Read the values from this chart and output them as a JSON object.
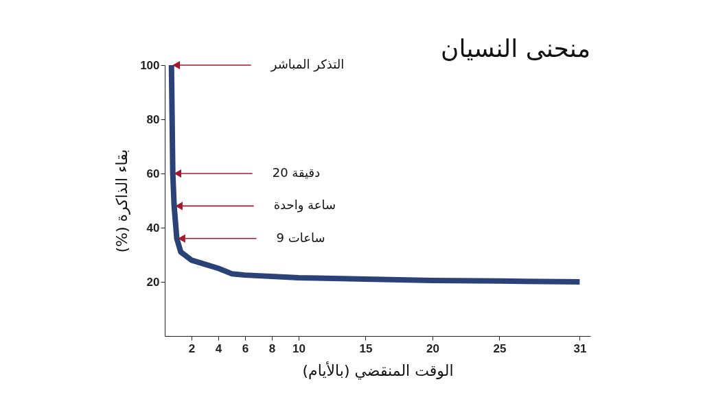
{
  "chart_data": {
    "type": "line",
    "title": "منحنى النسيان",
    "xlabel": "الوقت المنقضي (بالأيام)",
    "ylabel": "بقاء الذاكرة (%)",
    "x": [
      0.5,
      0.6,
      0.7,
      0.9,
      1.2,
      2,
      3,
      4,
      5,
      6,
      10,
      15,
      20,
      25,
      31
    ],
    "series": [
      {
        "color": "#2b4279",
        "values": [
          100,
          60,
          48,
          36,
          31,
          28,
          26.5,
          25,
          23,
          22.5,
          21.5,
          21,
          20.5,
          20.3,
          20
        ]
      }
    ],
    "xlim": [
      0,
      31.8
    ],
    "ylim": [
      0,
      100
    ],
    "xticks": [
      2,
      4,
      6,
      8,
      10,
      15,
      20,
      25,
      31
    ],
    "yticks": [
      20,
      40,
      60,
      80,
      100
    ],
    "annotations": [
      "التذكر المباشر",
      "20 دقيقة",
      "ساعة واحدة",
      "9 ساعات"
    ]
  }
}
